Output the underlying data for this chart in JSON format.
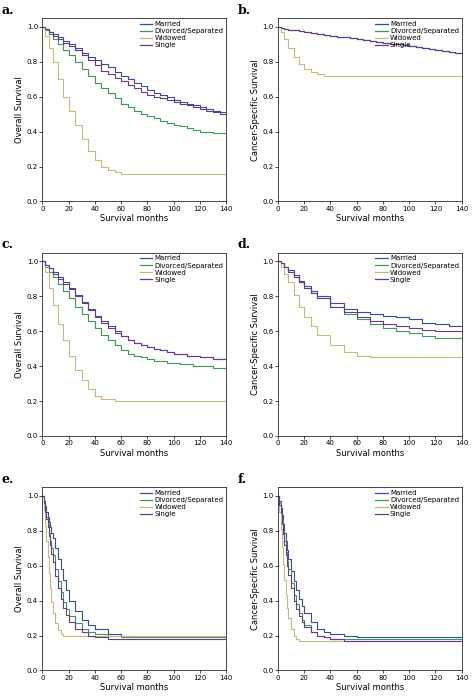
{
  "subplot_labels": [
    "a.",
    "b.",
    "c.",
    "d.",
    "e.",
    "f."
  ],
  "ylabels": [
    "Overall Survival",
    "Cancer-Specific Survival",
    "Overall Survival",
    "Cancer-Specific Survival",
    "Overall Survival",
    "Cancer-Specific Survival"
  ],
  "xlabel": "Survival months",
  "legend_labels": [
    "Married",
    "Divorced/Separated",
    "Widowed",
    "Single"
  ],
  "colors": {
    "married": "#3a4a9f",
    "divorced": "#3a9a5a",
    "widowed": "#c8b87a",
    "single": "#6a3a8a"
  },
  "panel_a": {
    "married": {
      "x": [
        0,
        2,
        5,
        8,
        12,
        16,
        20,
        25,
        30,
        35,
        40,
        45,
        50,
        55,
        60,
        65,
        70,
        75,
        80,
        85,
        90,
        95,
        100,
        105,
        110,
        115,
        120,
        125,
        130,
        135,
        140
      ],
      "y": [
        1.0,
        0.99,
        0.97,
        0.96,
        0.94,
        0.92,
        0.9,
        0.88,
        0.85,
        0.83,
        0.81,
        0.79,
        0.77,
        0.74,
        0.72,
        0.7,
        0.68,
        0.66,
        0.64,
        0.62,
        0.61,
        0.6,
        0.58,
        0.57,
        0.56,
        0.55,
        0.54,
        0.53,
        0.52,
        0.51,
        0.51
      ]
    },
    "divorced": {
      "x": [
        0,
        2,
        5,
        8,
        12,
        16,
        20,
        25,
        30,
        35,
        40,
        45,
        50,
        55,
        60,
        65,
        70,
        75,
        80,
        85,
        90,
        95,
        100,
        105,
        110,
        115,
        120,
        125,
        130,
        135,
        140
      ],
      "y": [
        1.0,
        0.98,
        0.96,
        0.93,
        0.9,
        0.87,
        0.84,
        0.8,
        0.76,
        0.72,
        0.68,
        0.65,
        0.62,
        0.59,
        0.56,
        0.54,
        0.52,
        0.5,
        0.49,
        0.48,
        0.46,
        0.45,
        0.44,
        0.43,
        0.42,
        0.41,
        0.4,
        0.4,
        0.39,
        0.39,
        0.38
      ]
    },
    "widowed": {
      "x": [
        0,
        2,
        5,
        8,
        12,
        16,
        20,
        25,
        30,
        35,
        40,
        45,
        50,
        55,
        60,
        65,
        70,
        75,
        80,
        85,
        90,
        95,
        100,
        105,
        110,
        115,
        120,
        125,
        130,
        135,
        140
      ],
      "y": [
        1.0,
        0.95,
        0.88,
        0.8,
        0.7,
        0.6,
        0.52,
        0.44,
        0.36,
        0.29,
        0.24,
        0.2,
        0.18,
        0.17,
        0.16,
        0.16,
        0.16,
        0.16,
        0.16,
        0.16,
        0.16,
        0.16,
        0.16,
        0.16,
        0.16,
        0.16,
        0.16,
        0.16,
        0.16,
        0.16,
        0.16
      ]
    },
    "single": {
      "x": [
        0,
        2,
        5,
        8,
        12,
        16,
        20,
        25,
        30,
        35,
        40,
        45,
        50,
        55,
        60,
        65,
        70,
        75,
        80,
        85,
        90,
        95,
        100,
        105,
        110,
        115,
        120,
        125,
        130,
        135,
        140
      ],
      "y": [
        1.0,
        0.99,
        0.97,
        0.95,
        0.93,
        0.91,
        0.89,
        0.87,
        0.84,
        0.81,
        0.78,
        0.75,
        0.73,
        0.71,
        0.69,
        0.67,
        0.65,
        0.63,
        0.61,
        0.6,
        0.59,
        0.58,
        0.57,
        0.56,
        0.55,
        0.54,
        0.53,
        0.52,
        0.51,
        0.5,
        0.5
      ]
    }
  },
  "panel_b": {
    "married": {
      "x": [
        0,
        2,
        5,
        8,
        12,
        16,
        20,
        25,
        30,
        35,
        40,
        45,
        50,
        55,
        60,
        65,
        70,
        75,
        80,
        85,
        90,
        95,
        100,
        105,
        110,
        115,
        120,
        125,
        130,
        135,
        140
      ],
      "y": [
        1.0,
        0.995,
        0.99,
        0.985,
        0.98,
        0.975,
        0.97,
        0.965,
        0.96,
        0.955,
        0.95,
        0.945,
        0.94,
        0.935,
        0.93,
        0.925,
        0.92,
        0.915,
        0.91,
        0.905,
        0.9,
        0.895,
        0.89,
        0.885,
        0.88,
        0.875,
        0.87,
        0.86,
        0.855,
        0.85,
        0.85
      ]
    },
    "divorced": {
      "x": [
        0,
        2,
        5,
        8,
        12,
        16,
        20,
        25,
        30,
        35,
        40,
        45,
        50,
        55,
        60,
        65,
        70,
        75,
        80,
        85,
        90,
        95,
        100,
        105,
        110,
        115,
        120,
        125,
        130,
        135,
        140
      ],
      "y": [
        1.0,
        0.995,
        0.99,
        0.985,
        0.98,
        0.975,
        0.97,
        0.965,
        0.96,
        0.955,
        0.95,
        0.945,
        0.94,
        0.935,
        0.93,
        0.925,
        0.92,
        0.915,
        0.91,
        0.905,
        0.9,
        0.895,
        0.89,
        0.885,
        0.88,
        0.875,
        0.87,
        0.86,
        0.855,
        0.85,
        0.85
      ]
    },
    "widowed": {
      "x": [
        0,
        2,
        5,
        8,
        12,
        16,
        20,
        25,
        30,
        35,
        40,
        45,
        55,
        65,
        75,
        85,
        90,
        140
      ],
      "y": [
        1.0,
        0.97,
        0.93,
        0.88,
        0.83,
        0.79,
        0.76,
        0.74,
        0.73,
        0.72,
        0.72,
        0.72,
        0.72,
        0.72,
        0.72,
        0.72,
        0.72,
        0.72
      ]
    },
    "single": {
      "x": [
        0,
        2,
        5,
        8,
        12,
        16,
        20,
        25,
        30,
        35,
        40,
        45,
        50,
        55,
        60,
        65,
        70,
        75,
        80,
        85,
        90,
        95,
        100,
        105,
        110,
        115,
        120,
        125,
        130,
        135,
        140
      ],
      "y": [
        1.0,
        0.995,
        0.99,
        0.985,
        0.98,
        0.975,
        0.97,
        0.965,
        0.96,
        0.955,
        0.95,
        0.945,
        0.94,
        0.935,
        0.93,
        0.925,
        0.92,
        0.915,
        0.91,
        0.905,
        0.9,
        0.895,
        0.89,
        0.885,
        0.88,
        0.875,
        0.87,
        0.86,
        0.855,
        0.85,
        0.85
      ]
    }
  },
  "panel_c": {
    "married": {
      "x": [
        0,
        2,
        5,
        8,
        12,
        16,
        20,
        25,
        30,
        35,
        40,
        45,
        50,
        55,
        60,
        65,
        70,
        75,
        80,
        85,
        90,
        95,
        100,
        105,
        110,
        115,
        120,
        125,
        130,
        135,
        140
      ],
      "y": [
        1.0,
        0.98,
        0.96,
        0.94,
        0.91,
        0.88,
        0.85,
        0.81,
        0.77,
        0.73,
        0.69,
        0.66,
        0.63,
        0.6,
        0.57,
        0.55,
        0.53,
        0.52,
        0.51,
        0.5,
        0.49,
        0.48,
        0.47,
        0.47,
        0.46,
        0.46,
        0.45,
        0.45,
        0.44,
        0.44,
        0.44
      ]
    },
    "divorced": {
      "x": [
        0,
        2,
        5,
        8,
        12,
        16,
        20,
        25,
        30,
        35,
        40,
        45,
        50,
        55,
        60,
        65,
        70,
        75,
        80,
        85,
        90,
        95,
        100,
        105,
        110,
        115,
        120,
        125,
        130,
        135,
        140
      ],
      "y": [
        1.0,
        0.97,
        0.94,
        0.91,
        0.87,
        0.83,
        0.79,
        0.74,
        0.7,
        0.66,
        0.62,
        0.58,
        0.55,
        0.52,
        0.49,
        0.47,
        0.46,
        0.45,
        0.44,
        0.43,
        0.43,
        0.42,
        0.42,
        0.41,
        0.41,
        0.4,
        0.4,
        0.4,
        0.39,
        0.39,
        0.39
      ]
    },
    "widowed": {
      "x": [
        0,
        2,
        5,
        8,
        12,
        16,
        20,
        25,
        30,
        35,
        40,
        45,
        55,
        65,
        75,
        85,
        95,
        105,
        115,
        125,
        135,
        140
      ],
      "y": [
        1.0,
        0.94,
        0.85,
        0.75,
        0.64,
        0.55,
        0.46,
        0.38,
        0.32,
        0.27,
        0.23,
        0.21,
        0.2,
        0.2,
        0.2,
        0.2,
        0.2,
        0.2,
        0.2,
        0.2,
        0.2,
        0.2
      ]
    },
    "single": {
      "x": [
        0,
        2,
        5,
        8,
        12,
        16,
        20,
        25,
        30,
        35,
        40,
        45,
        50,
        55,
        60,
        65,
        70,
        75,
        80,
        85,
        90,
        95,
        100,
        105,
        110,
        115,
        120,
        125,
        130,
        135,
        140
      ],
      "y": [
        1.0,
        0.98,
        0.96,
        0.93,
        0.9,
        0.87,
        0.84,
        0.8,
        0.76,
        0.72,
        0.68,
        0.65,
        0.62,
        0.59,
        0.57,
        0.55,
        0.53,
        0.52,
        0.51,
        0.5,
        0.49,
        0.48,
        0.47,
        0.47,
        0.46,
        0.46,
        0.45,
        0.45,
        0.44,
        0.44,
        0.44
      ]
    }
  },
  "panel_d": {
    "married": {
      "x": [
        0,
        2,
        5,
        8,
        12,
        16,
        20,
        25,
        30,
        40,
        50,
        60,
        70,
        80,
        90,
        100,
        110,
        120,
        130,
        140
      ],
      "y": [
        1.0,
        0.99,
        0.97,
        0.95,
        0.92,
        0.89,
        0.86,
        0.83,
        0.8,
        0.76,
        0.73,
        0.71,
        0.7,
        0.69,
        0.68,
        0.67,
        0.65,
        0.64,
        0.63,
        0.63
      ]
    },
    "divorced": {
      "x": [
        0,
        2,
        5,
        8,
        12,
        16,
        20,
        25,
        30,
        40,
        50,
        60,
        70,
        80,
        90,
        100,
        110,
        120,
        130,
        140
      ],
      "y": [
        1.0,
        0.99,
        0.97,
        0.94,
        0.91,
        0.88,
        0.85,
        0.82,
        0.79,
        0.74,
        0.7,
        0.67,
        0.64,
        0.62,
        0.6,
        0.59,
        0.57,
        0.56,
        0.56,
        0.56
      ]
    },
    "widowed": {
      "x": [
        0,
        2,
        5,
        8,
        12,
        16,
        20,
        25,
        30,
        40,
        50,
        60,
        70,
        140
      ],
      "y": [
        1.0,
        0.97,
        0.93,
        0.88,
        0.81,
        0.74,
        0.68,
        0.63,
        0.58,
        0.52,
        0.48,
        0.46,
        0.45,
        0.45
      ]
    },
    "single": {
      "x": [
        0,
        2,
        5,
        8,
        12,
        16,
        20,
        25,
        30,
        40,
        50,
        60,
        70,
        80,
        90,
        100,
        110,
        120,
        130,
        140
      ],
      "y": [
        1.0,
        0.99,
        0.97,
        0.94,
        0.91,
        0.88,
        0.85,
        0.82,
        0.79,
        0.74,
        0.71,
        0.68,
        0.66,
        0.64,
        0.63,
        0.62,
        0.61,
        0.6,
        0.6,
        0.6
      ]
    }
  },
  "panel_e": {
    "married": {
      "x": [
        0,
        1,
        2,
        3,
        4,
        5,
        6,
        7,
        8,
        10,
        12,
        14,
        16,
        18,
        20,
        25,
        30,
        35,
        40,
        50,
        60,
        70,
        80,
        90,
        100,
        120,
        140
      ],
      "y": [
        1.0,
        0.97,
        0.94,
        0.91,
        0.88,
        0.85,
        0.82,
        0.79,
        0.76,
        0.7,
        0.64,
        0.58,
        0.52,
        0.46,
        0.4,
        0.34,
        0.29,
        0.26,
        0.24,
        0.21,
        0.2,
        0.19,
        0.19,
        0.19,
        0.19,
        0.19,
        0.19
      ]
    },
    "divorced": {
      "x": [
        0,
        1,
        2,
        3,
        4,
        5,
        6,
        7,
        8,
        10,
        12,
        14,
        16,
        18,
        20,
        25,
        30,
        35,
        40,
        50,
        60,
        70,
        80,
        90,
        100,
        120,
        140
      ],
      "y": [
        1.0,
        0.96,
        0.92,
        0.88,
        0.84,
        0.79,
        0.74,
        0.7,
        0.66,
        0.58,
        0.51,
        0.45,
        0.39,
        0.35,
        0.31,
        0.27,
        0.24,
        0.22,
        0.21,
        0.2,
        0.19,
        0.19,
        0.19,
        0.19,
        0.19,
        0.19,
        0.19
      ]
    },
    "widowed": {
      "x": [
        0,
        1,
        2,
        3,
        4,
        5,
        6,
        7,
        8,
        10,
        12,
        14,
        16,
        18,
        20,
        25,
        30,
        35,
        140
      ],
      "y": [
        1.0,
        0.92,
        0.83,
        0.74,
        0.65,
        0.56,
        0.47,
        0.39,
        0.33,
        0.27,
        0.23,
        0.21,
        0.2,
        0.2,
        0.2,
        0.2,
        0.2,
        0.2,
        0.2
      ]
    },
    "single": {
      "x": [
        0,
        1,
        2,
        3,
        4,
        5,
        6,
        7,
        8,
        10,
        12,
        14,
        16,
        18,
        20,
        25,
        30,
        35,
        40,
        50,
        60,
        70,
        80,
        90,
        100,
        120,
        140
      ],
      "y": [
        1.0,
        0.96,
        0.91,
        0.87,
        0.82,
        0.77,
        0.72,
        0.67,
        0.62,
        0.54,
        0.47,
        0.41,
        0.36,
        0.32,
        0.28,
        0.24,
        0.22,
        0.2,
        0.19,
        0.18,
        0.18,
        0.18,
        0.18,
        0.18,
        0.18,
        0.18,
        0.18
      ]
    }
  },
  "panel_f": {
    "married": {
      "x": [
        0,
        1,
        2,
        3,
        4,
        5,
        6,
        7,
        8,
        10,
        12,
        14,
        16,
        18,
        20,
        25,
        30,
        35,
        40,
        50,
        60,
        70,
        80,
        90,
        100,
        120,
        140
      ],
      "y": [
        1.0,
        0.97,
        0.93,
        0.89,
        0.84,
        0.79,
        0.74,
        0.69,
        0.64,
        0.57,
        0.51,
        0.46,
        0.41,
        0.37,
        0.33,
        0.28,
        0.24,
        0.22,
        0.21,
        0.2,
        0.19,
        0.19,
        0.19,
        0.19,
        0.19,
        0.19,
        0.19
      ]
    },
    "divorced": {
      "x": [
        0,
        1,
        2,
        3,
        4,
        5,
        6,
        7,
        8,
        10,
        12,
        14,
        16,
        18,
        20,
        25,
        30,
        35,
        40,
        50,
        60,
        70,
        80,
        90,
        100,
        120,
        140
      ],
      "y": [
        1.0,
        0.96,
        0.91,
        0.86,
        0.8,
        0.74,
        0.68,
        0.63,
        0.58,
        0.5,
        0.43,
        0.38,
        0.33,
        0.29,
        0.26,
        0.22,
        0.2,
        0.19,
        0.18,
        0.18,
        0.18,
        0.18,
        0.18,
        0.18,
        0.18,
        0.18,
        0.18
      ]
    },
    "widowed": {
      "x": [
        0,
        1,
        2,
        3,
        4,
        5,
        6,
        7,
        8,
        10,
        12,
        14,
        16,
        18,
        20,
        25,
        30,
        35,
        140
      ],
      "y": [
        1.0,
        0.91,
        0.81,
        0.71,
        0.61,
        0.52,
        0.43,
        0.36,
        0.3,
        0.24,
        0.2,
        0.18,
        0.17,
        0.17,
        0.17,
        0.17,
        0.17,
        0.17,
        0.17
      ]
    },
    "single": {
      "x": [
        0,
        1,
        2,
        3,
        4,
        5,
        6,
        7,
        8,
        10,
        12,
        14,
        16,
        18,
        20,
        25,
        30,
        35,
        40,
        50,
        60,
        70,
        80,
        90,
        100,
        120,
        140
      ],
      "y": [
        1.0,
        0.95,
        0.9,
        0.84,
        0.78,
        0.72,
        0.66,
        0.6,
        0.55,
        0.47,
        0.4,
        0.35,
        0.31,
        0.28,
        0.25,
        0.22,
        0.2,
        0.19,
        0.18,
        0.17,
        0.17,
        0.17,
        0.17,
        0.17,
        0.17,
        0.17,
        0.17
      ]
    }
  },
  "xlim": [
    0,
    140
  ],
  "ylim": [
    0.0,
    1.05
  ],
  "xticks": [
    0,
    20,
    40,
    60,
    80,
    100,
    120,
    140
  ],
  "yticks": [
    0.0,
    0.2,
    0.4,
    0.6,
    0.8,
    1.0
  ],
  "line_width": 0.8,
  "background_color": "#ffffff",
  "label_fontsize": 6.0,
  "tick_fontsize": 5.0,
  "legend_fontsize": 5.0,
  "panel_label_fontsize": 9
}
